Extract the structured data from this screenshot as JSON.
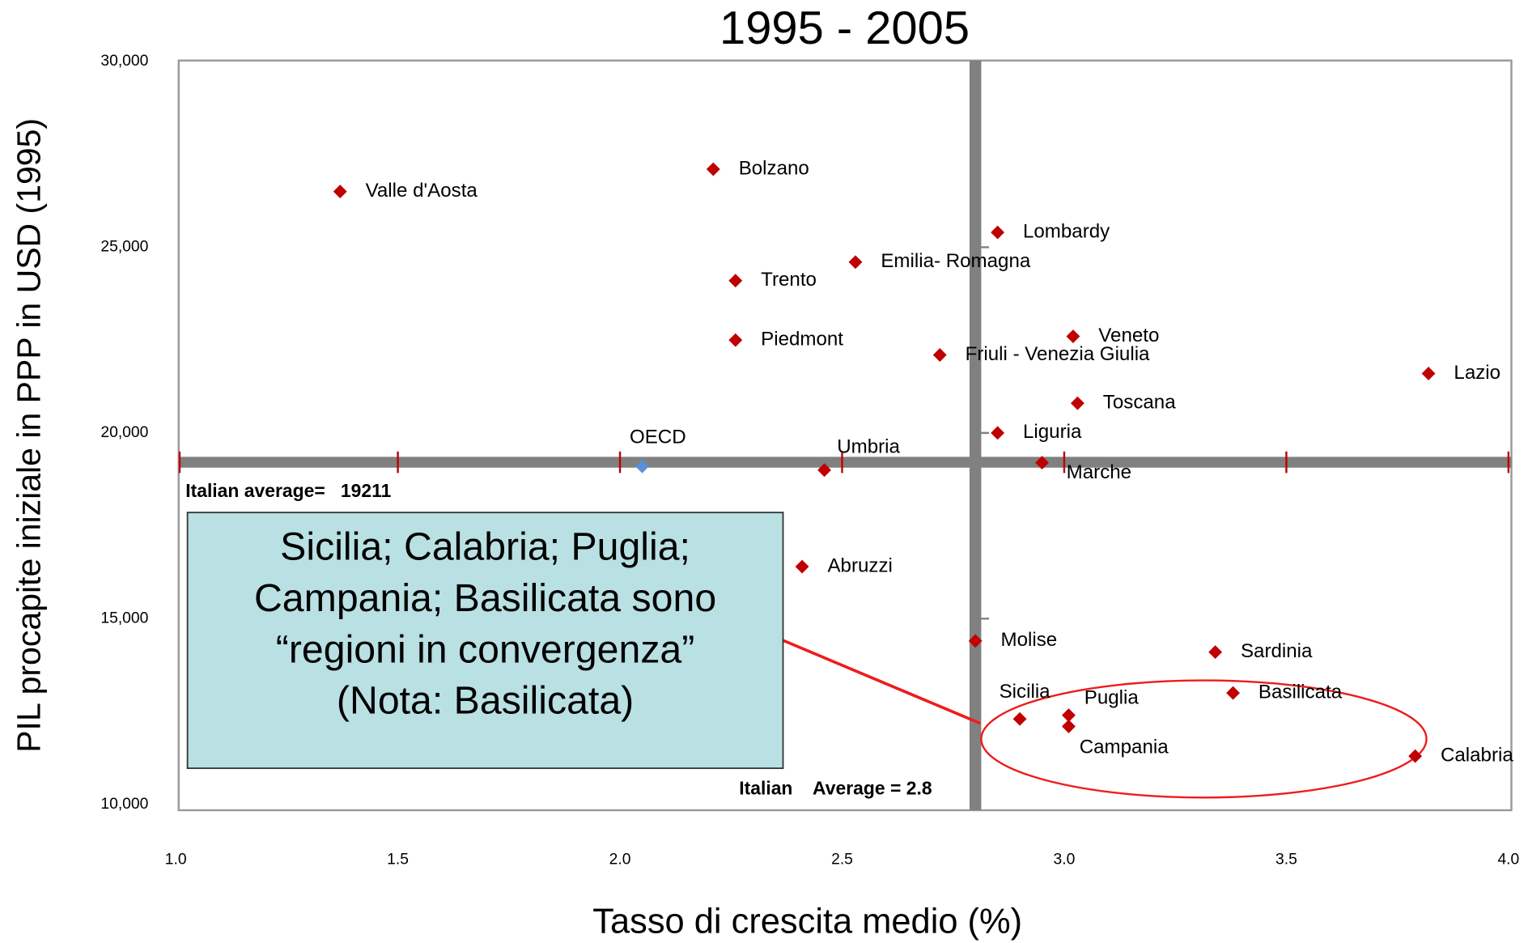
{
  "chart_data": {
    "type": "scatter",
    "title": "1995 - 2005",
    "x_label": "Tasso di crescita medio (%)",
    "y_label": "PIL procapite iniziale in PPP in USD (1995)",
    "labels": [
      "Valle d'Aosta",
      "Bolzano",
      "Trento",
      "Emilia- Romagna",
      "Piedmont",
      "Friuli - Venezia Giulia",
      "Lombardy",
      "Veneto",
      "Lazio",
      "Toscana",
      "Liguria",
      "OECD",
      "Umbria",
      "Marche",
      "Abruzzi",
      "Molise",
      "Sardinia",
      "Basilicata",
      "Sicilia",
      "Puglia",
      "Campania",
      "Calabria"
    ],
    "x": [
      1.37,
      2.21,
      2.26,
      2.53,
      2.26,
      2.72,
      2.85,
      3.02,
      3.82,
      3.03,
      2.85,
      2.05,
      2.46,
      2.95,
      2.41,
      2.8,
      3.34,
      3.38,
      2.9,
      3.01,
      3.01,
      3.79
    ],
    "values": [
      26500,
      27100,
      24100,
      24600,
      22500,
      22100,
      25400,
      22600,
      21600,
      20800,
      20000,
      19100,
      19000,
      19200,
      16400,
      14400,
      14100,
      13000,
      12300,
      12400,
      12100,
      11300
    ],
    "colors": [
      "#c00000",
      "#c00000",
      "#c00000",
      "#c00000",
      "#c00000",
      "#c00000",
      "#c00000",
      "#c00000",
      "#c00000",
      "#c00000",
      "#c00000",
      "#5b8fd6",
      "#c00000",
      "#c00000",
      "#c00000",
      "#c00000",
      "#c00000",
      "#c00000",
      "#c00000",
      "#c00000",
      "#c00000",
      "#c00000"
    ],
    "xlim": [
      1.0,
      4.0
    ],
    "ylim": [
      10000,
      30000
    ],
    "xticks": [
      {
        "value": 1,
        "label": "1.0"
      },
      1.5,
      {
        "value": 2,
        "label": "2.0"
      },
      2.5,
      {
        "value": 3,
        "label": "3.0"
      },
      3.5,
      {
        "value": 4,
        "label": "4.0"
      }
    ],
    "yticks": [
      {
        "value": 10000,
        "label": "10,000"
      },
      {
        "value": 15000,
        "label": "15,000"
      },
      {
        "value": 20000,
        "label": "20,000"
      },
      {
        "value": 25000,
        "label": "25,000"
      },
      {
        "value": 30000,
        "label": "30,000"
      }
    ],
    "reference_lines": {
      "y": 19211,
      "x": 2.8
    },
    "annotations": [
      "Italian average=   19211",
      "Italian    Average = 2.8"
    ],
    "callout": [
      "Sicilia; Calabria; Puglia;",
      "Campania; Basilicata sono",
      "“regioni in convergenza”",
      "(Nota: Basilicata)"
    ]
  }
}
